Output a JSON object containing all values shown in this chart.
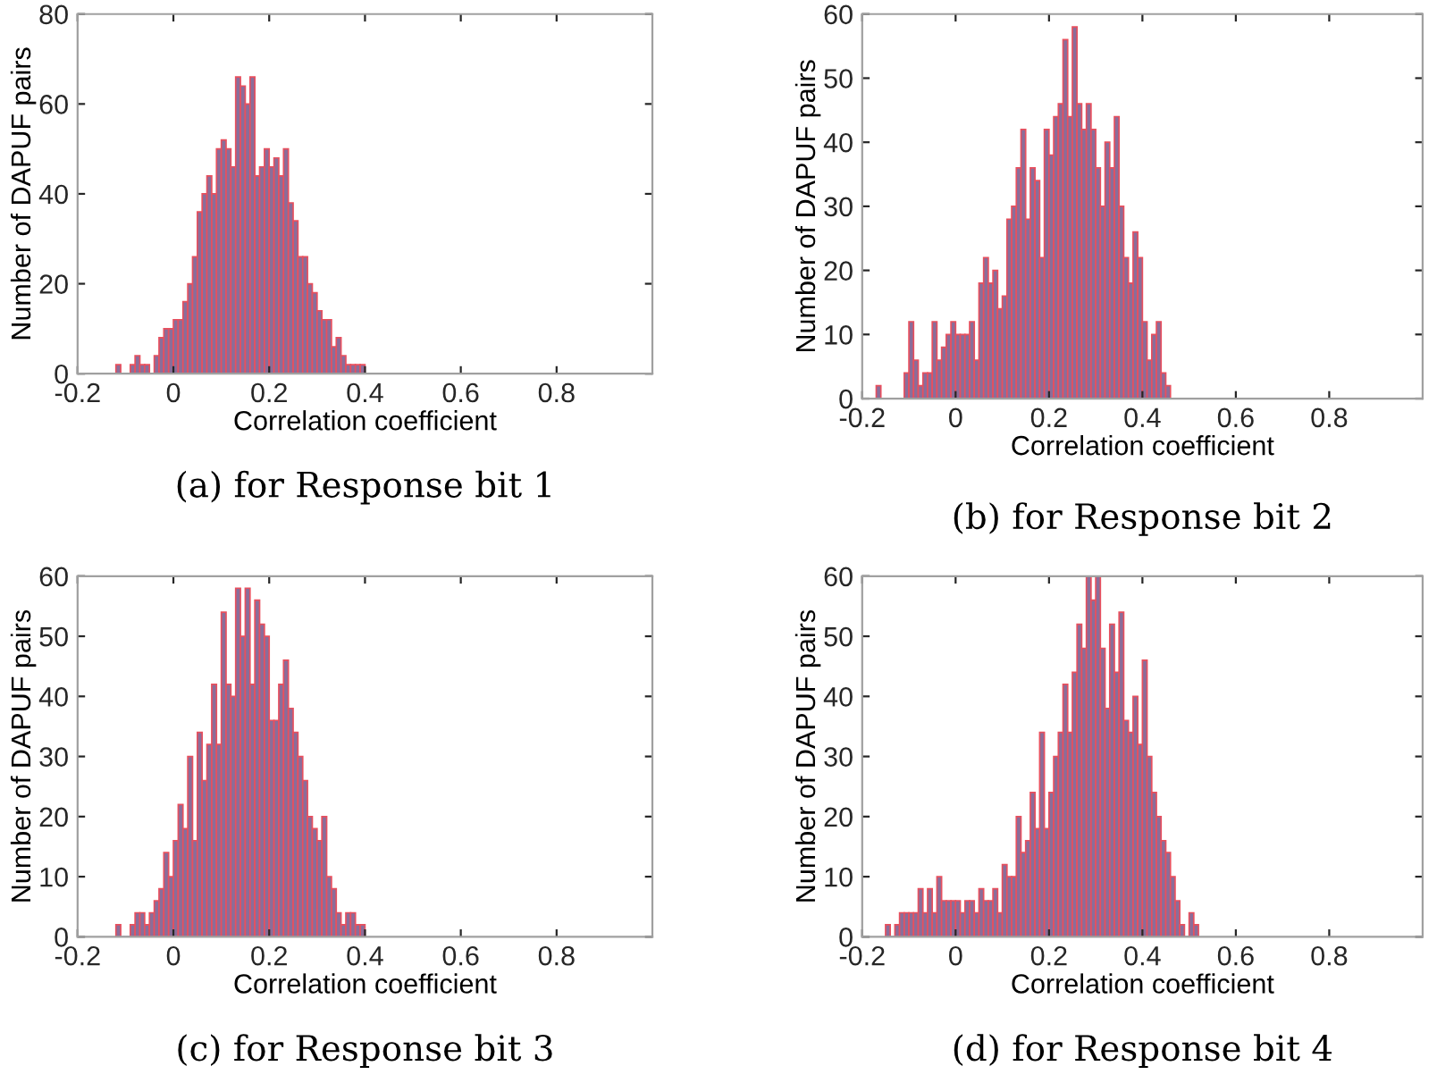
{
  "chart_data": [
    {
      "type": "histogram",
      "xlabel": "Correlation coefficient",
      "ylabel": "Number of DAPUF pairs",
      "annotations": [
        "(a) for Response bit 1"
      ],
      "color": "#8a6d9a",
      "xlim": [
        -0.2,
        1.0
      ],
      "ylim": [
        0,
        80
      ],
      "xticks": [
        -0.2,
        0,
        0.2,
        0.4,
        0.6,
        0.8
      ],
      "yticks": [
        0,
        20,
        40,
        60,
        80
      ],
      "grid": false,
      "bins": [
        -0.12,
        -0.11,
        -0.1,
        -0.09,
        -0.08,
        -0.07,
        -0.06,
        -0.05,
        -0.04,
        -0.03,
        -0.02,
        -0.01,
        0.0,
        0.01,
        0.02,
        0.03,
        0.04,
        0.05,
        0.06,
        0.07,
        0.08,
        0.09,
        0.1,
        0.11,
        0.12,
        0.13,
        0.14,
        0.15,
        0.16,
        0.17,
        0.18,
        0.19,
        0.2,
        0.21,
        0.22,
        0.23,
        0.24,
        0.25,
        0.26,
        0.27,
        0.28,
        0.29,
        0.3,
        0.31,
        0.32,
        0.33,
        0.34,
        0.35,
        0.36,
        0.37,
        0.38,
        0.39,
        0.4
      ],
      "values": [
        2,
        0,
        0,
        2,
        4,
        2,
        2,
        0,
        4,
        8,
        10,
        10,
        12,
        12,
        16,
        20,
        26,
        36,
        40,
        44,
        40,
        50,
        52,
        50,
        46,
        66,
        64,
        60,
        66,
        44,
        46,
        50,
        46,
        48,
        44,
        50,
        38,
        34,
        26,
        26,
        20,
        18,
        14,
        12,
        12,
        6,
        8,
        4,
        2,
        2,
        2,
        2
      ]
    },
    {
      "type": "histogram",
      "xlabel": "Correlation coefficient",
      "ylabel": "Number of DAPUF pairs",
      "annotations": [
        "(b) for Response bit 2"
      ],
      "color": "#8a6d9a",
      "xlim": [
        -0.2,
        1.0
      ],
      "ylim": [
        0,
        60
      ],
      "xticks": [
        -0.2,
        0,
        0.2,
        0.4,
        0.6,
        0.8
      ],
      "yticks": [
        0,
        10,
        20,
        30,
        40,
        50,
        60
      ],
      "grid": false,
      "bins": [
        -0.17,
        -0.16,
        -0.15,
        -0.14,
        -0.13,
        -0.12,
        -0.11,
        -0.1,
        -0.09,
        -0.08,
        -0.07,
        -0.06,
        -0.05,
        -0.04,
        -0.03,
        -0.02,
        -0.01,
        0.0,
        0.01,
        0.02,
        0.03,
        0.04,
        0.05,
        0.06,
        0.07,
        0.08,
        0.09,
        0.1,
        0.11,
        0.12,
        0.13,
        0.14,
        0.15,
        0.16,
        0.17,
        0.18,
        0.19,
        0.2,
        0.21,
        0.22,
        0.23,
        0.24,
        0.25,
        0.26,
        0.27,
        0.28,
        0.29,
        0.3,
        0.31,
        0.32,
        0.33,
        0.34,
        0.35,
        0.36,
        0.37,
        0.38,
        0.39,
        0.4,
        0.41,
        0.42,
        0.43,
        0.44,
        0.45,
        0.46
      ],
      "values": [
        2,
        0,
        0,
        0,
        0,
        0,
        4,
        12,
        6,
        2,
        4,
        4,
        12,
        6,
        8,
        10,
        12,
        10,
        10,
        10,
        12,
        6,
        18,
        22,
        18,
        20,
        14,
        16,
        28,
        30,
        36,
        42,
        28,
        36,
        34,
        22,
        42,
        38,
        44,
        46,
        56,
        44,
        58,
        46,
        42,
        46,
        42,
        36,
        30,
        40,
        36,
        44,
        30,
        22,
        18,
        26,
        22,
        12,
        6,
        10,
        12,
        4,
        2
      ]
    },
    {
      "type": "histogram",
      "xlabel": "Correlation coefficient",
      "ylabel": "Number of DAPUF pairs",
      "annotations": [
        "(c) for Response bit 3"
      ],
      "color": "#8a6d9a",
      "xlim": [
        -0.2,
        1.0
      ],
      "ylim": [
        0,
        60
      ],
      "xticks": [
        -0.2,
        0,
        0.2,
        0.4,
        0.6,
        0.8
      ],
      "yticks": [
        0,
        10,
        20,
        30,
        40,
        50,
        60
      ],
      "grid": false,
      "bins": [
        -0.12,
        -0.11,
        -0.1,
        -0.09,
        -0.08,
        -0.07,
        -0.06,
        -0.05,
        -0.04,
        -0.03,
        -0.02,
        -0.01,
        0.0,
        0.01,
        0.02,
        0.03,
        0.04,
        0.05,
        0.06,
        0.07,
        0.08,
        0.09,
        0.1,
        0.11,
        0.12,
        0.13,
        0.14,
        0.15,
        0.16,
        0.17,
        0.18,
        0.19,
        0.2,
        0.21,
        0.22,
        0.23,
        0.24,
        0.25,
        0.26,
        0.27,
        0.28,
        0.29,
        0.3,
        0.31,
        0.32,
        0.33,
        0.34,
        0.35,
        0.36,
        0.37,
        0.38,
        0.39,
        0.4
      ],
      "values": [
        2,
        0,
        0,
        2,
        4,
        4,
        2,
        4,
        6,
        8,
        14,
        10,
        16,
        22,
        18,
        30,
        16,
        34,
        26,
        32,
        42,
        32,
        54,
        42,
        40,
        58,
        50,
        58,
        42,
        56,
        52,
        50,
        36,
        36,
        42,
        46,
        38,
        34,
        30,
        26,
        20,
        18,
        16,
        20,
        10,
        8,
        4,
        2,
        4,
        4,
        2,
        2
      ]
    },
    {
      "type": "histogram",
      "xlabel": "Correlation coefficient",
      "ylabel": "Number of DAPUF pairs",
      "annotations": [
        "(d) for Response bit 4"
      ],
      "color": "#8a6d9a",
      "xlim": [
        -0.2,
        1.0
      ],
      "ylim": [
        0,
        60
      ],
      "xticks": [
        -0.2,
        0,
        0.2,
        0.4,
        0.6,
        0.8
      ],
      "yticks": [
        0,
        10,
        20,
        30,
        40,
        50,
        60
      ],
      "grid": false,
      "bins": [
        -0.15,
        -0.14,
        -0.13,
        -0.12,
        -0.11,
        -0.1,
        -0.09,
        -0.08,
        -0.07,
        -0.06,
        -0.05,
        -0.04,
        -0.03,
        -0.02,
        -0.01,
        0.0,
        0.01,
        0.02,
        0.03,
        0.04,
        0.05,
        0.06,
        0.07,
        0.08,
        0.09,
        0.1,
        0.11,
        0.12,
        0.13,
        0.14,
        0.15,
        0.16,
        0.17,
        0.18,
        0.19,
        0.2,
        0.21,
        0.22,
        0.23,
        0.24,
        0.25,
        0.26,
        0.27,
        0.28,
        0.29,
        0.3,
        0.31,
        0.32,
        0.33,
        0.34,
        0.35,
        0.36,
        0.37,
        0.38,
        0.39,
        0.4,
        0.41,
        0.42,
        0.43,
        0.44,
        0.45,
        0.46,
        0.47,
        0.48,
        0.49,
        0.5,
        0.51,
        0.52
      ],
      "values": [
        2,
        0,
        2,
        4,
        4,
        4,
        4,
        8,
        4,
        8,
        4,
        10,
        6,
        6,
        6,
        6,
        4,
        6,
        6,
        4,
        8,
        6,
        6,
        8,
        4,
        12,
        10,
        10,
        20,
        14,
        16,
        24,
        18,
        34,
        18,
        24,
        30,
        34,
        42,
        34,
        44,
        52,
        48,
        60,
        56,
        60,
        48,
        38,
        52,
        44,
        54,
        36,
        34,
        40,
        32,
        46,
        30,
        24,
        20,
        16,
        14,
        10,
        6,
        2,
        0,
        4,
        2
      ]
    }
  ]
}
